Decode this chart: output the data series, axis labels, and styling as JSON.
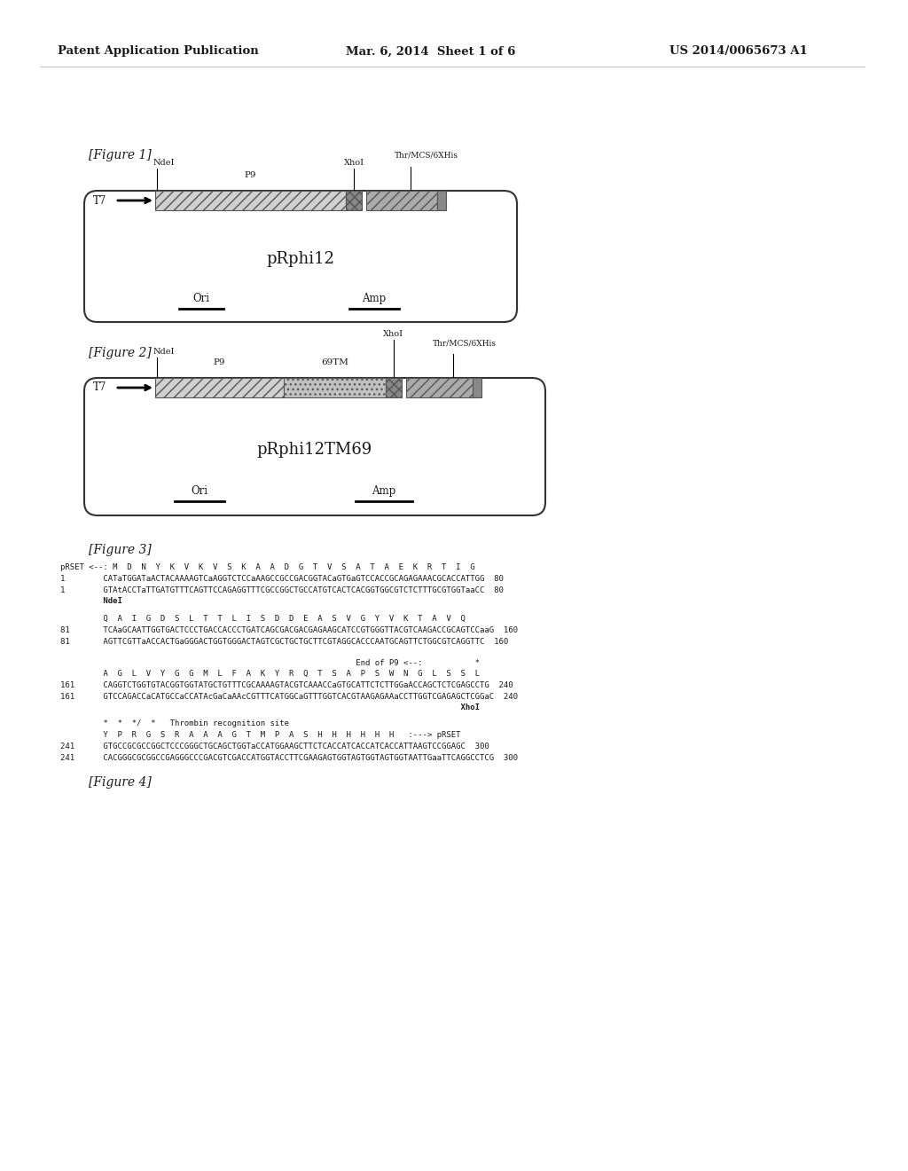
{
  "header_left": "Patent Application Publication",
  "header_mid": "Mar. 6, 2014  Sheet 1 of 6",
  "header_right": "US 2014/0065673 A1",
  "fig1_label": "[Figure 1]",
  "fig1_plasmid_name": "pRphi12",
  "fig1_ori": "Ori",
  "fig1_amp": "Amp",
  "fig2_label": "[Figure 2]",
  "fig2_plasmid_name": "pRphi12TM69",
  "fig2_ori": "Ori",
  "fig2_amp": "Amp",
  "fig3_label": "[Figure 3]",
  "fig4_label": "[Figure 4]",
  "bg_color": "#ffffff",
  "text_color": "#1a1a1a"
}
